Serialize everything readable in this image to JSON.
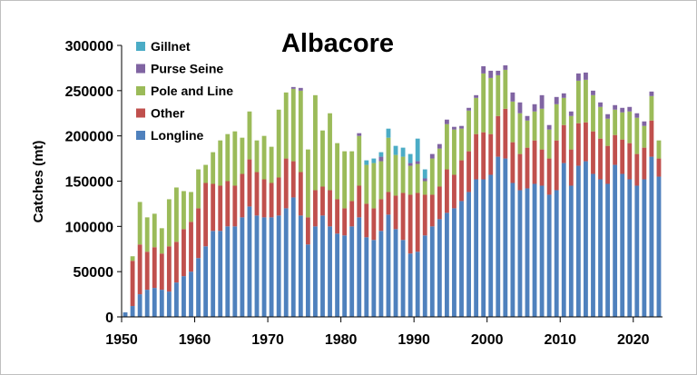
{
  "chart_data": {
    "type": "bar",
    "stacked": true,
    "title": "Albacore",
    "xlabel": "",
    "ylabel": "Catches (mt)",
    "ylim": [
      0,
      300000
    ],
    "xlim": [
      1950,
      2024
    ],
    "x_ticks": [
      1950,
      1960,
      1970,
      1980,
      1990,
      2000,
      2010,
      2020
    ],
    "y_ticks": [
      0,
      50000,
      100000,
      150000,
      200000,
      250000,
      300000
    ],
    "y_tick_labels": [
      "0",
      "50000",
      "100000",
      "150000",
      "200000",
      "250000",
      "300000"
    ],
    "grid": false,
    "legend_position": "top-left",
    "legend_order": [
      "Gillnet",
      "Purse Seine",
      "Pole and Line",
      "Other",
      "Longline"
    ],
    "series_colors": {
      "Longline": "#4f81bd",
      "Other": "#c0504d",
      "Pole and Line": "#9bbb59",
      "Purse Seine": "#8064a2",
      "Gillnet": "#4bacc6"
    },
    "x": [
      1950,
      1951,
      1952,
      1953,
      1954,
      1955,
      1956,
      1957,
      1958,
      1959,
      1960,
      1961,
      1962,
      1963,
      1964,
      1965,
      1966,
      1967,
      1968,
      1969,
      1970,
      1971,
      1972,
      1973,
      1974,
      1975,
      1976,
      1977,
      1978,
      1979,
      1980,
      1981,
      1982,
      1983,
      1984,
      1985,
      1986,
      1987,
      1988,
      1989,
      1990,
      1991,
      1992,
      1993,
      1994,
      1995,
      1996,
      1997,
      1998,
      1999,
      2000,
      2001,
      2002,
      2003,
      2004,
      2005,
      2006,
      2007,
      2008,
      2009,
      2010,
      2011,
      2012,
      2013,
      2014,
      2015,
      2016,
      2017,
      2018,
      2019,
      2020,
      2021,
      2022,
      2023
    ],
    "series": [
      {
        "name": "Longline",
        "values": [
          5000,
          12000,
          25000,
          30000,
          32000,
          30000,
          28000,
          38000,
          45000,
          50000,
          65000,
          78000,
          95000,
          95000,
          100000,
          100000,
          110000,
          122000,
          112000,
          110000,
          110000,
          112000,
          120000,
          132000,
          112000,
          80000,
          100000,
          112000,
          100000,
          92000,
          90000,
          100000,
          110000,
          88000,
          85000,
          95000,
          113000,
          97000,
          85000,
          70000,
          72000,
          90000,
          100000,
          108000,
          115000,
          120000,
          128000,
          138000,
          152000,
          152000,
          157000,
          177000,
          175000,
          148000,
          140000,
          142000,
          147000,
          145000,
          135000,
          140000,
          170000,
          145000,
          167000,
          172000,
          158000,
          152000,
          147000,
          168000,
          158000,
          152000,
          145000,
          152000,
          177000,
          155000
        ]
      },
      {
        "name": "Other",
        "values": [
          0,
          50000,
          55000,
          42000,
          45000,
          40000,
          50000,
          45000,
          52000,
          55000,
          55000,
          70000,
          52000,
          50000,
          50000,
          45000,
          48000,
          52000,
          48000,
          42000,
          38000,
          42000,
          55000,
          40000,
          48000,
          30000,
          40000,
          32000,
          40000,
          38000,
          30000,
          28000,
          35000,
          37000,
          35000,
          35000,
          25000,
          37000,
          52000,
          65000,
          65000,
          45000,
          35000,
          36000,
          48000,
          37000,
          45000,
          45000,
          50000,
          52000,
          45000,
          45000,
          55000,
          45000,
          40000,
          45000,
          48000,
          40000,
          40000,
          55000,
          42000,
          40000,
          47000,
          43000,
          47000,
          45000,
          42000,
          33000,
          38000,
          40000,
          35000,
          35000,
          40000,
          20000
        ]
      },
      {
        "name": "Pole and Line",
        "values": [
          0,
          5000,
          47000,
          38000,
          37000,
          28000,
          52000,
          60000,
          42000,
          33000,
          43000,
          20000,
          35000,
          50000,
          52000,
          60000,
          40000,
          53000,
          35000,
          48000,
          40000,
          75000,
          73000,
          80000,
          90000,
          75000,
          105000,
          62000,
          85000,
          62000,
          63000,
          55000,
          55000,
          43000,
          50000,
          42000,
          60000,
          45000,
          40000,
          32000,
          32000,
          15000,
          40000,
          42000,
          50000,
          50000,
          35000,
          45000,
          40000,
          65000,
          62000,
          45000,
          43000,
          45000,
          45000,
          30000,
          32000,
          45000,
          32000,
          40000,
          30000,
          37000,
          47000,
          47000,
          40000,
          35000,
          30000,
          28000,
          30000,
          35000,
          40000,
          24000,
          27000,
          20000
        ]
      },
      {
        "name": "Purse Seine",
        "values": [
          0,
          0,
          0,
          0,
          0,
          0,
          0,
          0,
          0,
          0,
          0,
          0,
          0,
          0,
          0,
          0,
          0,
          0,
          0,
          0,
          0,
          0,
          0,
          2000,
          3000,
          0,
          0,
          0,
          0,
          0,
          0,
          0,
          3000,
          0,
          0,
          5000,
          0,
          0,
          0,
          3000,
          3000,
          3000,
          5000,
          5000,
          5000,
          3000,
          3000,
          3000,
          3000,
          8000,
          8000,
          5000,
          5000,
          10000,
          12000,
          5000,
          8000,
          15000,
          5000,
          8000,
          5000,
          5000,
          8000,
          8000,
          5000,
          5000,
          5000,
          5000,
          5000,
          5000,
          5000,
          5000,
          5000,
          0
        ]
      },
      {
        "name": "Gillnet",
        "values": [
          0,
          0,
          0,
          0,
          0,
          0,
          0,
          0,
          0,
          0,
          0,
          0,
          0,
          0,
          0,
          0,
          0,
          0,
          0,
          0,
          0,
          0,
          0,
          0,
          0,
          0,
          0,
          0,
          0,
          0,
          0,
          0,
          0,
          5000,
          5000,
          5000,
          10000,
          10000,
          10000,
          10000,
          25000,
          10000,
          0,
          0,
          0,
          0,
          0,
          0,
          0,
          0,
          0,
          0,
          0,
          0,
          0,
          0,
          0,
          0,
          0,
          0,
          0,
          0,
          0,
          0,
          0,
          0,
          0,
          0,
          0,
          0,
          0,
          0,
          0,
          0
        ]
      }
    ]
  }
}
